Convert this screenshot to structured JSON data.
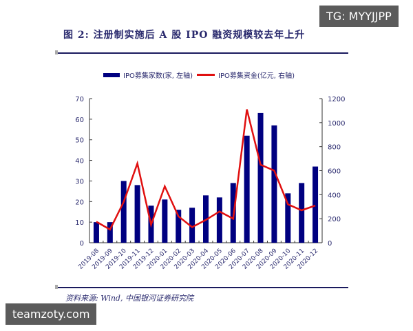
{
  "watermarks": {
    "top_right": "TG: MYYJJPP",
    "bottom_left": "teamzoty.com"
  },
  "figure": {
    "title": "图 2: 注册制实施后 A 股 IPO 融资规模较去年上升",
    "source": "资料来源: Wind, 中国银河证券研究院"
  },
  "legend": {
    "bar_label": "IPO募集家数(家, 左轴)",
    "line_label": "IPO募集资金(亿元, 右轴)"
  },
  "colors": {
    "bar": "#000080",
    "line": "#e01010",
    "text": "#2a2a6e"
  },
  "chart_data": {
    "type": "bar",
    "title": "图 2: 注册制实施后 A 股 IPO 融资规模较去年上升",
    "categories": [
      "2019-08",
      "2019-09",
      "2019-10",
      "2019-11",
      "2019-12",
      "2020-01",
      "2020-02",
      "2020-03",
      "2020-04",
      "2020-05",
      "2020-06",
      "2020-07",
      "2020-08",
      "2020-09",
      "2020-10",
      "2020-11",
      "2020-12"
    ],
    "series": [
      {
        "name": "IPO募集家数(家, 左轴)",
        "type": "bar",
        "axis": "left",
        "values": [
          10,
          10,
          30,
          28,
          18,
          21,
          16,
          17,
          23,
          22,
          29,
          52,
          63,
          57,
          24,
          29,
          37
        ]
      },
      {
        "name": "IPO募集资金(亿元, 右轴)",
        "type": "line",
        "axis": "right",
        "values": [
          175,
          110,
          340,
          660,
          150,
          470,
          220,
          130,
          190,
          260,
          200,
          1110,
          650,
          600,
          320,
          270,
          310
        ]
      }
    ],
    "y_left": {
      "label": "家",
      "ylim": [
        0,
        70
      ],
      "ticks": [
        0,
        10,
        20,
        30,
        40,
        50,
        60,
        70
      ]
    },
    "y_right": {
      "label": "亿元",
      "ylim": [
        0,
        1200
      ],
      "ticks": [
        0,
        200,
        400,
        600,
        800,
        1000,
        1200
      ]
    },
    "xlabel": "",
    "grid": false,
    "legend_position": "top"
  }
}
